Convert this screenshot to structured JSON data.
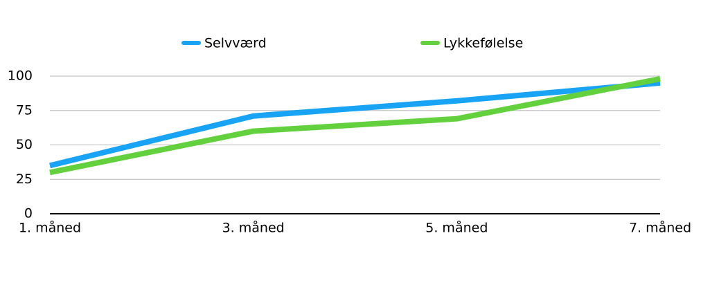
{
  "chart_data": {
    "type": "line",
    "categories": [
      "1. måned",
      "3. måned",
      "5. måned",
      "7. måned"
    ],
    "series": [
      {
        "name": "Selvværd",
        "color": "#18a3f5",
        "values": [
          35,
          71,
          82,
          95
        ]
      },
      {
        "name": "Lykkefølelse",
        "color": "#63d13e",
        "values": [
          30,
          60,
          69,
          98
        ]
      }
    ],
    "ylim": [
      0,
      100
    ],
    "yticks": [
      0,
      25,
      50,
      75,
      100
    ],
    "grid": true,
    "legend": "top"
  }
}
